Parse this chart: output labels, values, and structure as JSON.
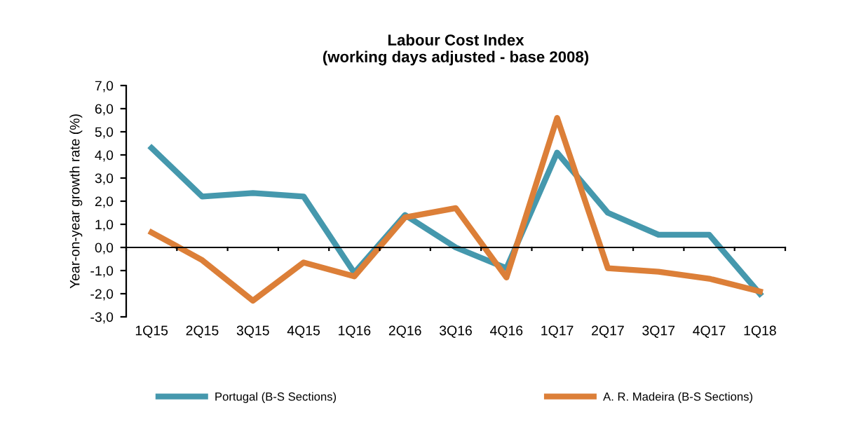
{
  "chart_data": {
    "type": "line",
    "title": "Labour Cost Index\n(working days adjusted - base 2008)",
    "ylabel": "Year-on-year growth rate (%)",
    "categories": [
      "1Q15",
      "2Q15",
      "3Q15",
      "4Q15",
      "1Q16",
      "2Q16",
      "3Q16",
      "4Q16",
      "1Q17",
      "2Q17",
      "3Q17",
      "4Q17",
      "1Q18"
    ],
    "series": [
      {
        "name": "Portugal (B-S Sections)",
        "color": "#4598ad",
        "values": [
          4.3,
          2.2,
          2.35,
          2.2,
          -1.1,
          1.4,
          0.0,
          -0.9,
          4.1,
          1.5,
          0.55,
          0.55,
          -2.0
        ]
      },
      {
        "name": "A. R. Madeira (B-S Sections)",
        "color": "#dc7f38",
        "values": [
          0.65,
          -0.55,
          -2.3,
          -0.65,
          -1.25,
          1.3,
          1.7,
          -1.3,
          5.6,
          -0.9,
          -1.05,
          -1.35,
          -1.9
        ]
      }
    ],
    "ylim": [
      -3,
      7
    ],
    "yticks": [
      {
        "value": -3,
        "label": "-3,0"
      },
      {
        "value": -2,
        "label": "-2,0"
      },
      {
        "value": -1,
        "label": "-1,0"
      },
      {
        "value": 0,
        "label": "0,0"
      },
      {
        "value": 1,
        "label": "1,0"
      },
      {
        "value": 2,
        "label": "2,0"
      },
      {
        "value": 3,
        "label": "3,0"
      },
      {
        "value": 4,
        "label": "4,0"
      },
      {
        "value": 5,
        "label": "5,0"
      },
      {
        "value": 6,
        "label": "6,0"
      },
      {
        "value": 7,
        "label": "7,0"
      }
    ],
    "legend": "bottom",
    "marker": "none",
    "line_style": "solid"
  }
}
